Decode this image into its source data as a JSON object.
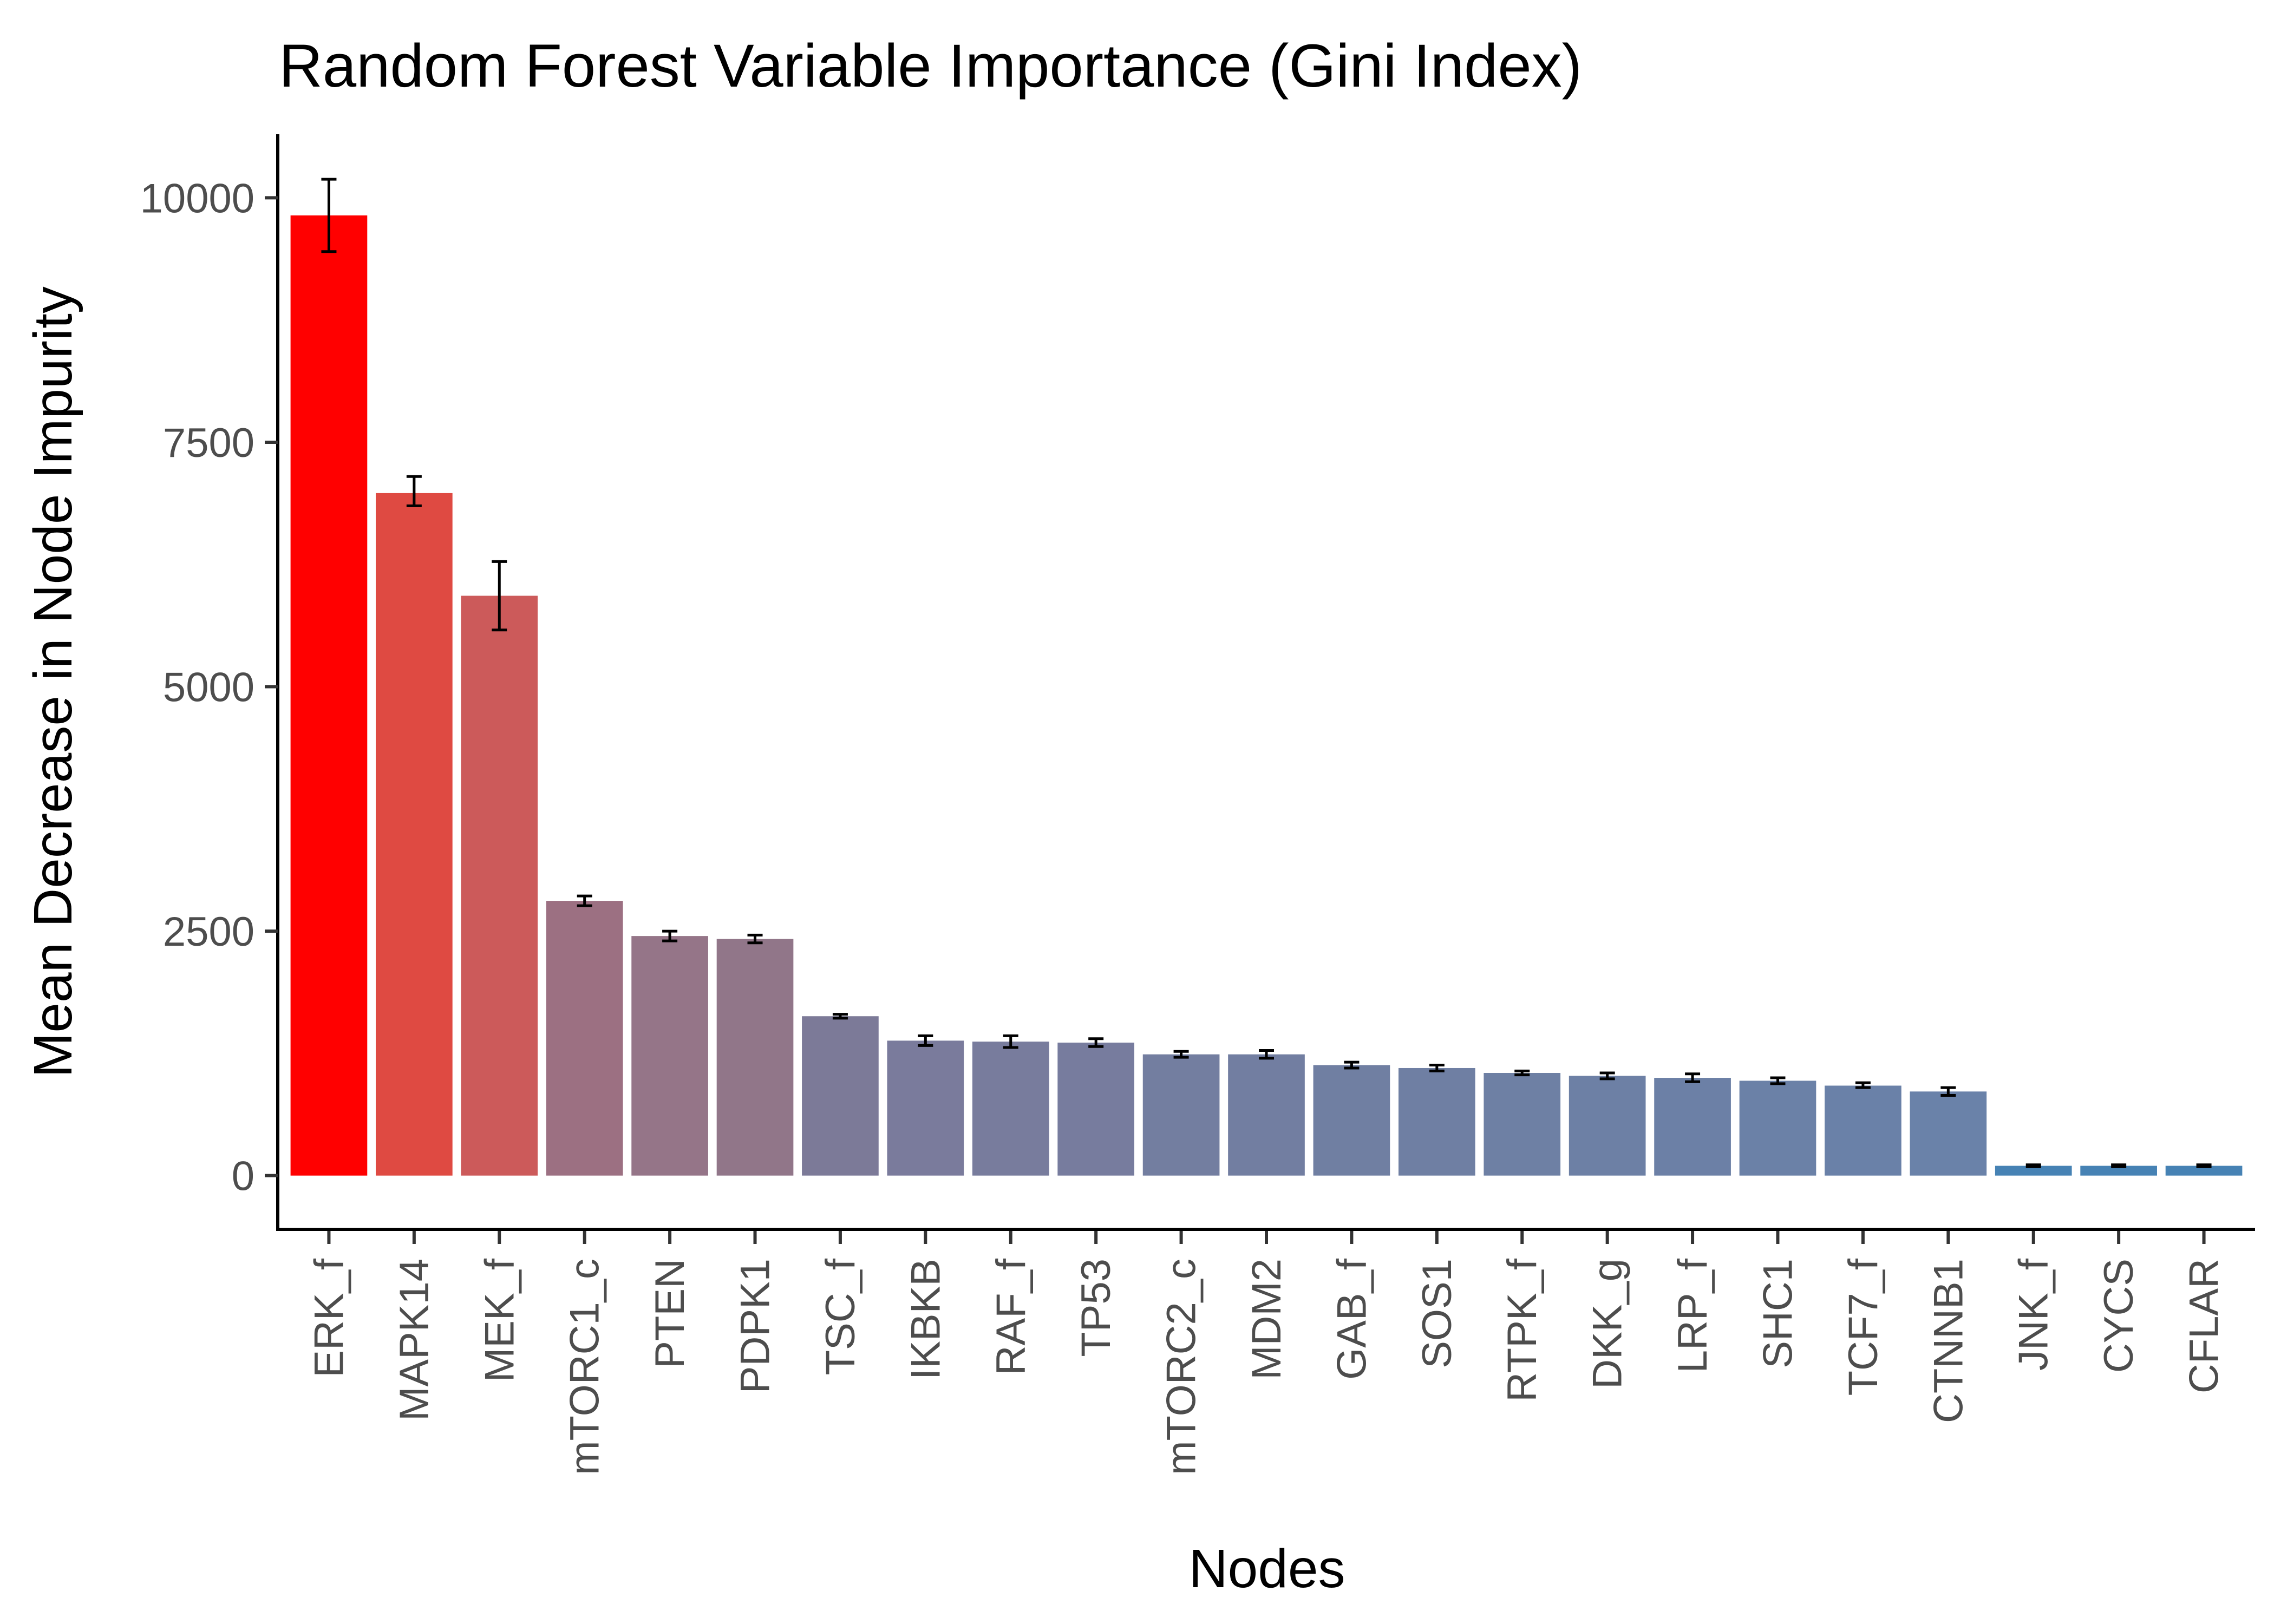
{
  "chart_data": {
    "type": "bar",
    "title": "Random Forest Variable Importance (Gini Index)",
    "xlabel": "Nodes",
    "ylabel": "Mean Decrease in Node Impurity",
    "ylim": [
      -550,
      10650
    ],
    "yticks": [
      0,
      2500,
      5000,
      7500,
      10000
    ],
    "yticklabels": [
      "0",
      "2500",
      "5000",
      "7500",
      "10000"
    ],
    "grid": false,
    "categories": [
      "ERK_f",
      "MAPK14",
      "MEK_f",
      "mTORC1_c",
      "PTEN",
      "PDPK1",
      "TSC_f",
      "IKBKB",
      "RAF_f",
      "TP53",
      "mTORC2_c",
      "MDM2",
      "GAB_f",
      "SOS1",
      "RTPK_f",
      "DKK_g",
      "LRP_f",
      "SHC1",
      "TCF7_f",
      "CTNNB1",
      "JNK_f",
      "CYCS",
      "CFLAR"
    ],
    "values": [
      9820,
      6980,
      5930,
      2810,
      2450,
      2420,
      1630,
      1380,
      1370,
      1360,
      1240,
      1240,
      1130,
      1100,
      1050,
      1020,
      1000,
      970,
      920,
      860,
      100,
      100,
      100
    ],
    "error_low": [
      9450,
      6850,
      5580,
      2760,
      2400,
      2380,
      1610,
      1330,
      1310,
      1320,
      1210,
      1200,
      1100,
      1070,
      1030,
      990,
      960,
      940,
      900,
      820,
      90,
      90,
      90
    ],
    "error_high": [
      10190,
      7150,
      6280,
      2860,
      2500,
      2460,
      1650,
      1430,
      1430,
      1400,
      1270,
      1280,
      1160,
      1130,
      1070,
      1050,
      1040,
      1000,
      950,
      900,
      110,
      110,
      110
    ],
    "bar_colors": [
      "#ff0000",
      "#df4a42",
      "#cc5a5a",
      "#9c7082",
      "#957588",
      "#917689",
      "#7c7a98",
      "#7a7b9c",
      "#787c9d",
      "#777c9e",
      "#737ea0",
      "#727ea1",
      "#707fa2",
      "#6f7fa3",
      "#6e80a4",
      "#6d80a5",
      "#6c80a6",
      "#6b81a7",
      "#6a81a8",
      "#6a82a9",
      "#4682b4",
      "#4682b4",
      "#4682b4"
    ],
    "highlighted_labels": [
      "ERK_f",
      "MAPK14",
      "MEK_f",
      "mTORC1_c",
      "PTEN"
    ],
    "highlight_color": "#008b00",
    "default_label_color": "#4d4d4d"
  }
}
